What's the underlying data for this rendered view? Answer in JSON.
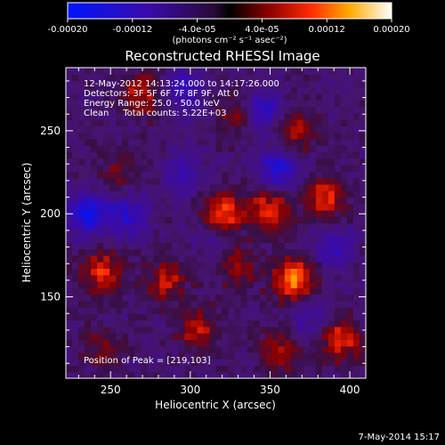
{
  "chart_data": {
    "type": "heatmap",
    "title": "Reconstructed RHESSI Image",
    "xlabel": "Heliocentric X (arcsec)",
    "ylabel": "Heliocentric Y (arcsec)",
    "xlim": [
      222,
      410
    ],
    "ylim": [
      101,
      288
    ],
    "x_ticks": [
      250,
      300,
      350,
      400
    ],
    "y_ticks": [
      150,
      200,
      250
    ],
    "colorbar": {
      "min": -0.0002,
      "max": 0.0002,
      "ticks": [
        "-0.00020",
        "-0.00012",
        "-4.0e-05",
        "4.0e-05",
        "0.00012",
        "0.00020"
      ],
      "unit_label": "(photons cm⁻² s⁻¹ asec⁻²)",
      "scale": "blue-purple-black-red-yellow-white"
    },
    "annotations": [
      "12-May-2012 14:13:24.000 to 14:17:26.000",
      "Detectors: 3F 5F 6F 7F 8F 9F, Att 0",
      "Energy Range: 25.0 - 50.0 keV",
      "Clean     Total counts: 5.22E+03"
    ],
    "peak_label": "Position of Peak = [219,103]",
    "hot_regions": [
      {
        "x": 270,
        "y": 272,
        "level": 0.0001
      },
      {
        "x": 255,
        "y": 225,
        "level": 6e-05
      },
      {
        "x": 320,
        "y": 200,
        "level": 0.00015
      },
      {
        "x": 350,
        "y": 202,
        "level": 0.00013
      },
      {
        "x": 385,
        "y": 210,
        "level": 0.00012
      },
      {
        "x": 365,
        "y": 250,
        "level": 0.0001
      },
      {
        "x": 330,
        "y": 260,
        "level": 8e-05
      },
      {
        "x": 245,
        "y": 165,
        "level": 0.00012
      },
      {
        "x": 285,
        "y": 160,
        "level": 9e-05
      },
      {
        "x": 365,
        "y": 160,
        "level": 0.00017
      },
      {
        "x": 330,
        "y": 170,
        "level": 8e-05
      },
      {
        "x": 305,
        "y": 130,
        "level": 0.0001
      },
      {
        "x": 395,
        "y": 125,
        "level": 0.00012
      },
      {
        "x": 355,
        "y": 118,
        "level": 8e-05
      },
      {
        "x": 245,
        "y": 120,
        "level": 6e-05
      }
    ],
    "cold_regions": [
      {
        "x": 235,
        "y": 200,
        "level": -0.00015
      },
      {
        "x": 260,
        "y": 200,
        "level": -0.00011
      },
      {
        "x": 295,
        "y": 275,
        "level": -0.0001
      },
      {
        "x": 355,
        "y": 228,
        "level": -0.00012
      },
      {
        "x": 345,
        "y": 262,
        "level": -0.00012
      },
      {
        "x": 295,
        "y": 225,
        "level": -8e-05
      },
      {
        "x": 390,
        "y": 180,
        "level": -8e-05
      },
      {
        "x": 375,
        "y": 138,
        "level": -7e-05
      },
      {
        "x": 315,
        "y": 185,
        "level": -6e-05
      }
    ]
  },
  "footer": {
    "date": "7-May-2014 15:17"
  }
}
